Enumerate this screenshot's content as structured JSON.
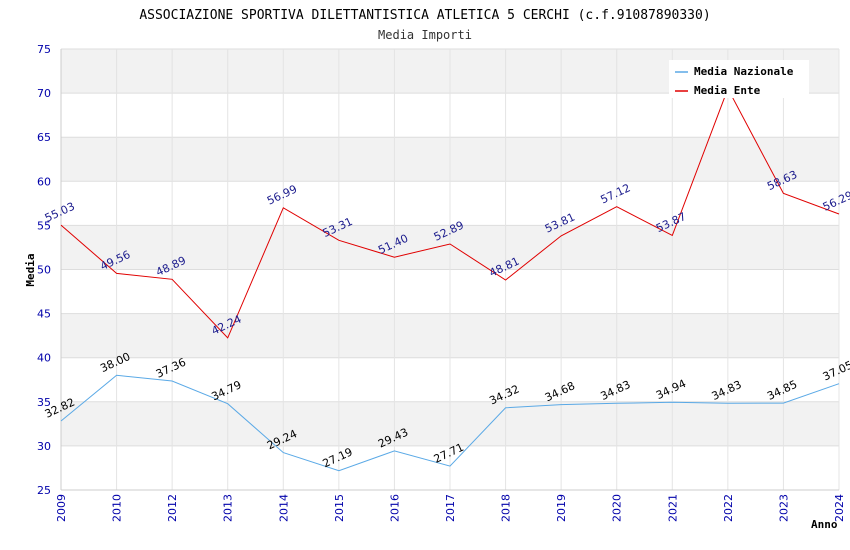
{
  "chart_data": {
    "type": "line",
    "title": "ASSOCIAZIONE SPORTIVA DILETTANTISTICA ATLETICA 5 CERCHI (c.f.91087890330)",
    "subtitle": "Media Importi",
    "xlabel": "Anno",
    "ylabel": "Media",
    "ylim": [
      25,
      75
    ],
    "yticks": [
      25,
      30,
      35,
      40,
      45,
      50,
      55,
      60,
      65,
      70,
      75
    ],
    "categories": [
      "2009",
      "2010",
      "2012",
      "2013",
      "2014",
      "2015",
      "2016",
      "2017",
      "2018",
      "2019",
      "2020",
      "2021",
      "2022",
      "2023",
      "2024"
    ],
    "series": [
      {
        "name": "Media Nazionale",
        "color": "#5aa9e6",
        "values": [
          32.82,
          38.0,
          37.36,
          34.79,
          29.24,
          27.19,
          29.43,
          27.71,
          34.32,
          34.68,
          34.83,
          34.94,
          34.83,
          34.85,
          37.05
        ],
        "labels": [
          "32.82",
          "38.00",
          "37.36",
          "34.79",
          "29.24",
          "27.19",
          "29.43",
          "27.71",
          "34.32",
          "34.68",
          "34.83",
          "34.94",
          "34.83",
          "34.85",
          "37.05"
        ]
      },
      {
        "name": "Media Ente",
        "color": "#e00000",
        "values": [
          55.03,
          49.56,
          48.89,
          42.24,
          56.99,
          53.31,
          51.4,
          52.89,
          48.81,
          53.81,
          57.12,
          53.87,
          70.5,
          58.63,
          56.29
        ],
        "labels": [
          "55.03",
          "49.56",
          "48.89",
          "42.24",
          "56.99",
          "53.31",
          "51.40",
          "52.89",
          "48.81",
          "53.81",
          "57.12",
          "53.87",
          "",
          "58.63",
          "56.29"
        ]
      }
    ],
    "grid": true,
    "band_colors": [
      "#f2f2f2",
      "#ffffff"
    ],
    "legend_position": "top-right"
  }
}
